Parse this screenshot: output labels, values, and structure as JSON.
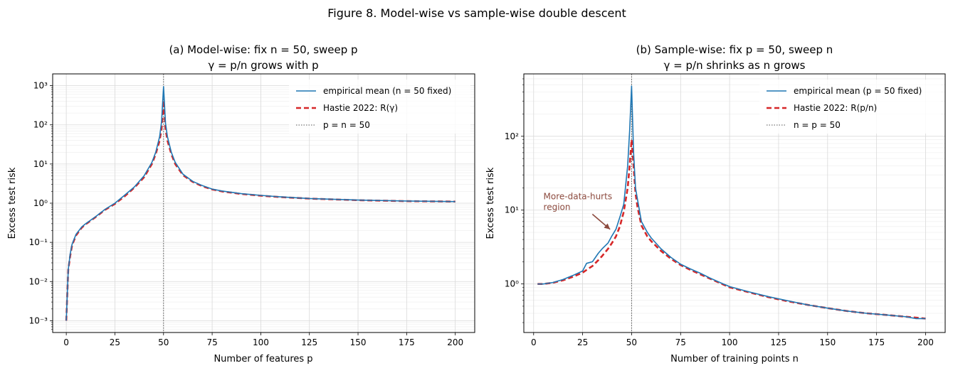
{
  "figure": {
    "suptitle": "Figure 8.  Model-wise vs sample-wise double descent"
  },
  "colors": {
    "empirical": "#1f77b4",
    "theory": "#d62728",
    "vline": "#555555",
    "annotation": "#8c4a3e"
  },
  "chart_data": [
    {
      "type": "line",
      "title_line1": "(a) Model-wise:  fix n = 50, sweep p",
      "title_line2": "γ = p/n grows with p",
      "xlabel": "Number of features  p",
      "ylabel": "Excess test risk",
      "xlim": [
        -7,
        210
      ],
      "ylim": [
        0.0005,
        2000
      ],
      "yscale": "log",
      "xticks": [
        0,
        25,
        50,
        75,
        100,
        125,
        150,
        175,
        200
      ],
      "yticks": [
        0.001,
        0.01,
        0.1,
        1,
        10,
        100,
        1000
      ],
      "ytick_labels": [
        "10⁻³",
        "10⁻²",
        "10⁻¹",
        "10⁰",
        "10¹",
        "10²",
        "10³"
      ],
      "grid": true,
      "legend_position": "top-right",
      "legend": [
        {
          "label": "empirical mean (n = 50 fixed)",
          "style": "solid",
          "color": "#1f77b4"
        },
        {
          "label": "Hastie 2022:  R(γ)",
          "style": "dashed",
          "color": "#d62728"
        },
        {
          "label": "p = n = 50",
          "style": "dotted",
          "color": "#555555"
        }
      ],
      "vline": 50,
      "series": [
        {
          "name": "empirical mean (n = 50 fixed)",
          "x": [
            0,
            1,
            2,
            3,
            5,
            8,
            10,
            15,
            20,
            25,
            30,
            35,
            40,
            44,
            46,
            48,
            49,
            50,
            51,
            52,
            54,
            56,
            60,
            65,
            70,
            75,
            80,
            90,
            100,
            110,
            125,
            150,
            175,
            200
          ],
          "y": [
            0.001,
            0.02,
            0.05,
            0.09,
            0.16,
            0.25,
            0.3,
            0.45,
            0.7,
            1.0,
            1.6,
            2.6,
            5.0,
            11,
            20,
            50,
            120,
            950,
            110,
            50,
            20,
            11,
            5.5,
            3.6,
            2.8,
            2.3,
            2.05,
            1.75,
            1.58,
            1.45,
            1.32,
            1.2,
            1.14,
            1.1
          ]
        },
        {
          "name": "Hastie 2022:  R(γ)",
          "x": [
            0,
            1,
            2,
            3,
            5,
            8,
            10,
            15,
            20,
            25,
            30,
            35,
            40,
            44,
            46,
            48,
            49,
            50,
            51,
            52,
            54,
            56,
            60,
            65,
            70,
            75,
            80,
            90,
            100,
            110,
            125,
            150,
            175,
            200
          ],
          "y": [
            0.001,
            0.02,
            0.045,
            0.085,
            0.15,
            0.24,
            0.29,
            0.44,
            0.68,
            0.96,
            1.5,
            2.5,
            4.6,
            10,
            18,
            40,
            80,
            420,
            80,
            40,
            18,
            10,
            5.2,
            3.5,
            2.7,
            2.25,
            2.0,
            1.72,
            1.56,
            1.43,
            1.31,
            1.19,
            1.13,
            1.1
          ]
        }
      ]
    },
    {
      "type": "line",
      "title_line1": "(b) Sample-wise:  fix p = 50, sweep n",
      "title_line2": "γ = p/n shrinks as n grows",
      "xlabel": "Number of training points  n",
      "ylabel": "Excess test risk",
      "xlim": [
        -5,
        210
      ],
      "ylim": [
        0.22,
        700
      ],
      "yscale": "log",
      "xticks": [
        0,
        25,
        50,
        75,
        100,
        125,
        150,
        175,
        200
      ],
      "yticks": [
        1,
        10,
        100
      ],
      "ytick_labels": [
        "10⁰",
        "10¹",
        "10²"
      ],
      "grid": true,
      "legend_position": "top-right",
      "legend": [
        {
          "label": "empirical mean (p = 50 fixed)",
          "style": "solid",
          "color": "#1f77b4"
        },
        {
          "label": "Hastie 2022:  R(p/n)",
          "style": "dashed",
          "color": "#d62728"
        },
        {
          "label": "n = p = 50",
          "style": "dotted",
          "color": "#555555"
        }
      ],
      "vline": 50,
      "annotation": {
        "text_line1": "More-data-hurts",
        "text_line2": "region",
        "text_at": [
          5,
          14
        ],
        "arrow_from": [
          30,
          8.8
        ],
        "arrow_to": [
          39,
          5.5
        ]
      },
      "series": [
        {
          "name": "empirical mean (p = 50 fixed)",
          "x": [
            2,
            5,
            10,
            15,
            20,
            25,
            27,
            30,
            33,
            35,
            38,
            40,
            42,
            44,
            46,
            48,
            49,
            50,
            51,
            52,
            53,
            55,
            58,
            60,
            65,
            70,
            75,
            80,
            85,
            90,
            95,
            100,
            110,
            120,
            130,
            140,
            150,
            160,
            170,
            180,
            190,
            195,
            200
          ],
          "y": [
            1.0,
            1.0,
            1.05,
            1.15,
            1.3,
            1.5,
            1.9,
            2.0,
            2.6,
            3.0,
            3.6,
            4.5,
            5.5,
            8.0,
            12,
            40,
            120,
            480,
            60,
            20,
            14,
            7,
            5,
            4.2,
            3.0,
            2.3,
            1.85,
            1.6,
            1.4,
            1.2,
            1.05,
            0.92,
            0.78,
            0.67,
            0.59,
            0.52,
            0.47,
            0.43,
            0.4,
            0.38,
            0.36,
            0.34,
            0.34
          ]
        },
        {
          "name": "Hastie 2022:  R(p/n)",
          "x": [
            2,
            5,
            10,
            15,
            20,
            25,
            27,
            30,
            33,
            35,
            38,
            40,
            42,
            44,
            46,
            48,
            49,
            50,
            51,
            52,
            53,
            55,
            58,
            60,
            65,
            70,
            75,
            80,
            85,
            90,
            95,
            100,
            110,
            120,
            130,
            140,
            150,
            160,
            170,
            180,
            190,
            195,
            200
          ],
          "y": [
            1.0,
            1.0,
            1.04,
            1.12,
            1.25,
            1.42,
            1.55,
            1.75,
            2.1,
            2.4,
            3.0,
            3.6,
            4.4,
            6.0,
            9.5,
            20,
            40,
            90,
            40,
            17,
            11,
            6.2,
            4.4,
            3.8,
            2.8,
            2.2,
            1.8,
            1.55,
            1.35,
            1.18,
            1.03,
            0.9,
            0.77,
            0.66,
            0.58,
            0.52,
            0.47,
            0.43,
            0.4,
            0.38,
            0.36,
            0.35,
            0.34
          ]
        }
      ]
    }
  ]
}
